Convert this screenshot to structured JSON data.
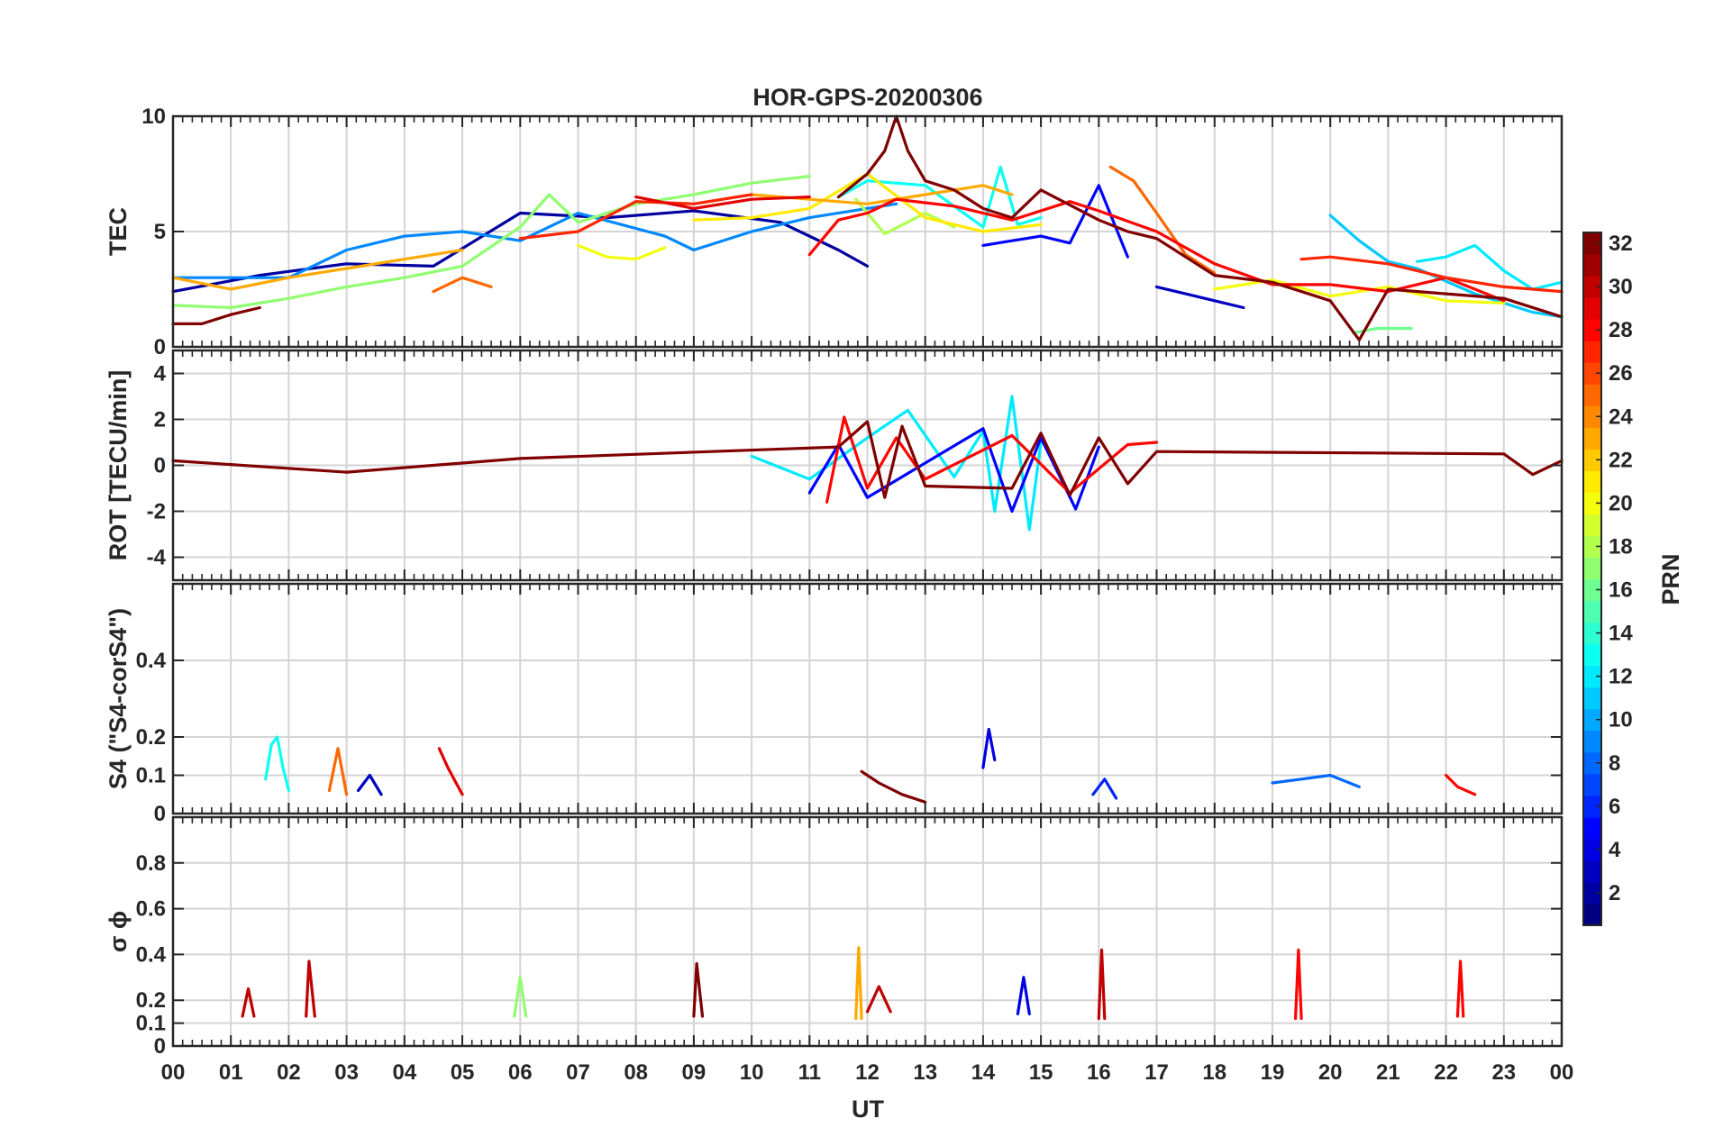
{
  "chart_data": {
    "type": "line",
    "title": "HOR-GPS-20200306",
    "xlabel": "UT",
    "x_unit": "hour",
    "xlim": [
      0,
      24
    ],
    "x_ticks": [
      "00",
      "01",
      "02",
      "03",
      "04",
      "05",
      "06",
      "07",
      "08",
      "09",
      "10",
      "11",
      "12",
      "13",
      "14",
      "15",
      "16",
      "17",
      "18",
      "19",
      "20",
      "21",
      "22",
      "23",
      "00"
    ],
    "grid": true,
    "colorbar": {
      "label": "PRN",
      "colormap": "jet",
      "range": [
        1,
        32
      ],
      "ticks": [
        "2",
        "4",
        "6",
        "8",
        "10",
        "12",
        "14",
        "16",
        "18",
        "20",
        "22",
        "24",
        "26",
        "28",
        "30",
        "32"
      ]
    },
    "panels": [
      {
        "id": "tec",
        "ylabel": "TEC",
        "ylim": [
          0,
          10
        ],
        "y_ticks": [
          {
            "v": 0,
            "t": "0"
          },
          {
            "v": 5,
            "t": "5"
          },
          {
            "v": 10,
            "t": "10"
          }
        ],
        "series": [
          {
            "prn": 2,
            "x": [
              0.0,
              1.5,
              3.0,
              4.5,
              6.0,
              7.5,
              9.0,
              10.5,
              11.5,
              12.0
            ],
            "y": [
              2.4,
              3.1,
              3.6,
              3.5,
              5.8,
              5.6,
              5.9,
              5.4,
              4.2,
              3.5
            ]
          },
          {
            "prn": 5,
            "x": [
              14.0,
              14.5,
              15.0,
              15.5,
              16.0,
              16.5
            ],
            "y": [
              4.4,
              4.6,
              4.8,
              4.5,
              7.0,
              3.9
            ]
          },
          {
            "prn": 3,
            "x": [
              17.0,
              17.5,
              18.0,
              18.5
            ],
            "y": [
              2.6,
              2.3,
              2.0,
              1.7
            ]
          },
          {
            "prn": 9,
            "x": [
              0.0,
              2.0,
              3.0,
              4.0,
              5.0,
              6.0,
              7.0,
              8.5,
              9.0,
              10.0,
              11.0,
              12.5
            ],
            "y": [
              3.0,
              3.0,
              4.2,
              4.8,
              5.0,
              4.6,
              5.8,
              4.8,
              4.2,
              5.0,
              5.6,
              6.2
            ]
          },
          {
            "prn": 11,
            "x": [
              20.0,
              20.5,
              21.0,
              21.5,
              22.5,
              23.5,
              24.0
            ],
            "y": [
              5.7,
              4.6,
              3.7,
              3.4,
              2.3,
              1.5,
              1.3
            ]
          },
          {
            "prn": 13,
            "x": [
              11.5,
              12.0,
              13.0,
              14.0,
              14.3,
              14.6,
              15.0
            ],
            "y": [
              6.5,
              7.2,
              7.0,
              5.2,
              7.8,
              5.3,
              5.6
            ]
          },
          {
            "prn": 12,
            "x": [
              21.5,
              22.0,
              22.5,
              23.0,
              23.5,
              24.0
            ],
            "y": [
              3.7,
              3.9,
              4.4,
              3.3,
              2.5,
              2.8
            ]
          },
          {
            "prn": 17,
            "x": [
              0.0,
              1.0,
              2.0,
              3.0,
              4.0,
              5.0,
              6.0,
              6.5,
              7.0,
              8.0,
              9.0,
              10.0,
              11.0
            ],
            "y": [
              1.8,
              1.7,
              2.1,
              2.6,
              3.0,
              3.5,
              5.2,
              6.6,
              5.4,
              6.2,
              6.6,
              7.1,
              7.4
            ]
          },
          {
            "prn": 18,
            "x": [
              11.8,
              12.3,
              13.0,
              13.5
            ],
            "y": [
              6.4,
              4.9,
              5.8,
              5.2
            ]
          },
          {
            "prn": 16,
            "x": [
              20.4,
              20.8,
              21.4
            ],
            "y": [
              0.6,
              0.8,
              0.8
            ]
          },
          {
            "prn": 20,
            "x": [
              7.0,
              7.5,
              8.0,
              8.5
            ],
            "y": [
              4.4,
              3.9,
              3.8,
              4.3
            ]
          },
          {
            "prn": 21,
            "x": [
              9.0,
              10.0,
              11.0,
              12.0,
              13.0,
              14.0,
              15.0
            ],
            "y": [
              5.5,
              5.6,
              6.0,
              7.5,
              5.6,
              5.0,
              5.3
            ]
          },
          {
            "prn": 20,
            "x": [
              18.0,
              19.0,
              20.0,
              21.0,
              22.0,
              23.0
            ],
            "y": [
              2.5,
              2.9,
              2.2,
              2.6,
              2.0,
              1.9
            ]
          },
          {
            "prn": 23,
            "x": [
              0.0,
              1.0,
              2.0,
              3.0,
              4.0,
              5.0
            ],
            "y": [
              3.0,
              2.5,
              3.0,
              3.4,
              3.8,
              4.2
            ]
          },
          {
            "prn": 23,
            "x": [
              10.0,
              11.0,
              12.0,
              13.0,
              14.0,
              14.5
            ],
            "y": [
              6.6,
              6.4,
              6.2,
              6.6,
              7.0,
              6.6
            ]
          },
          {
            "prn": 25,
            "x": [
              16.2,
              16.6,
              17.0,
              17.5,
              18.0
            ],
            "y": [
              7.8,
              7.2,
              5.8,
              4.0,
              3.2
            ]
          },
          {
            "prn": 25,
            "x": [
              4.5,
              5.0,
              5.5
            ],
            "y": [
              2.4,
              3.0,
              2.6
            ]
          },
          {
            "prn": 28,
            "x": [
              11.0,
              11.5,
              12.0,
              12.5,
              13.5,
              14.5,
              15.5,
              16.0,
              17.0,
              18.0,
              19.0,
              20.0,
              21.0,
              22.0,
              23.0
            ],
            "y": [
              4.0,
              5.5,
              5.8,
              6.4,
              6.1,
              5.5,
              6.3,
              5.9,
              5.0,
              3.6,
              2.7,
              2.7,
              2.4,
              3.0,
              2.0
            ]
          },
          {
            "prn": 27,
            "x": [
              6.0,
              7.0,
              8.0,
              9.0,
              10.0
            ],
            "y": [
              4.7,
              5.0,
              6.3,
              6.2,
              6.6
            ]
          },
          {
            "prn": 27,
            "x": [
              19.5,
              20.0,
              21.0,
              22.0,
              23.0,
              24.0
            ],
            "y": [
              3.8,
              3.9,
              3.6,
              3.0,
              2.6,
              2.4
            ]
          },
          {
            "prn": 29,
            "x": [
              8.0,
              9.0,
              10.0,
              11.0
            ],
            "y": [
              6.5,
              6.0,
              6.4,
              6.5
            ]
          },
          {
            "prn": 32,
            "x": [
              0.0,
              0.5,
              1.0,
              1.5
            ],
            "y": [
              1.0,
              1.0,
              1.4,
              1.7
            ]
          },
          {
            "prn": 32,
            "x": [
              11.5,
              12.0,
              12.3,
              12.5,
              12.7,
              13.0,
              13.5,
              14.0,
              14.5,
              15.0,
              16.0,
              16.5,
              17.0,
              18.0,
              19.0,
              20.0,
              20.5,
              21.0,
              22.0,
              23.0,
              24.0
            ],
            "y": [
              6.5,
              7.5,
              8.5,
              10.0,
              8.5,
              7.2,
              6.8,
              6.0,
              5.6,
              6.8,
              5.5,
              5.0,
              4.7,
              3.1,
              2.8,
              2.0,
              0.3,
              2.5,
              2.3,
              2.1,
              1.3
            ]
          }
        ]
      },
      {
        "id": "rot",
        "ylabel": "ROT [TECU/min]",
        "ylim": [
          -5,
          5
        ],
        "y_ticks": [
          {
            "v": -4,
            "t": "-4"
          },
          {
            "v": -2,
            "t": "-2"
          },
          {
            "v": 0,
            "t": "0"
          },
          {
            "v": 2,
            "t": "2"
          },
          {
            "v": 4,
            "t": "4"
          }
        ],
        "series": [
          {
            "prn": 12,
            "x": [
              10.0,
              11.0,
              12.0,
              12.7,
              13.5,
              14.0,
              14.2,
              14.5,
              14.8,
              15.0
            ],
            "y": [
              0.4,
              -0.6,
              1.2,
              2.4,
              -0.5,
              1.5,
              -2.0,
              3.0,
              -2.8,
              1.0
            ]
          },
          {
            "prn": 5,
            "x": [
              11.0,
              11.5,
              12.0,
              14.0,
              14.5,
              15.0,
              15.6,
              16.0
            ],
            "y": [
              -1.2,
              0.9,
              -1.4,
              1.6,
              -2.0,
              1.2,
              -1.9,
              0.8
            ]
          },
          {
            "prn": 28,
            "x": [
              11.3,
              11.6,
              12.0,
              12.5,
              13.0,
              14.5,
              15.5,
              16.5,
              17.0
            ],
            "y": [
              -1.6,
              2.1,
              -1.0,
              1.2,
              -0.6,
              1.3,
              -1.2,
              0.9,
              1.0
            ]
          },
          {
            "prn": 32,
            "x": [
              0.0,
              3.0,
              6.0,
              11.5,
              12.0,
              12.3,
              12.6,
              13.0,
              14.5,
              15.0,
              15.5,
              16.0,
              16.5,
              17.0,
              23.0,
              23.5,
              24.0
            ],
            "y": [
              0.2,
              -0.3,
              0.3,
              0.8,
              1.9,
              -1.4,
              1.7,
              -0.9,
              -1.0,
              1.4,
              -1.3,
              1.2,
              -0.8,
              0.6,
              0.5,
              -0.4,
              0.2
            ]
          }
        ]
      },
      {
        "id": "s4",
        "ylabel": "S4 (\"S4-corS4\")",
        "ylim": [
          0,
          0.6
        ],
        "y_ticks": [
          {
            "v": 0,
            "t": "0"
          },
          {
            "v": 0.1,
            "t": "0.1"
          },
          {
            "v": 0.2,
            "t": "0.2"
          },
          {
            "v": 0.4,
            "t": "0.4"
          }
        ],
        "series": [
          {
            "prn": 13,
            "x": [
              1.6,
              1.7,
              1.8,
              1.9,
              2.0
            ],
            "y": [
              0.09,
              0.18,
              0.2,
              0.12,
              0.06
            ]
          },
          {
            "prn": 25,
            "x": [
              2.7,
              2.85,
              3.0
            ],
            "y": [
              0.06,
              0.17,
              0.05
            ]
          },
          {
            "prn": 3,
            "x": [
              3.2,
              3.4,
              3.6
            ],
            "y": [
              0.06,
              0.1,
              0.05
            ]
          },
          {
            "prn": 29,
            "x": [
              4.6,
              4.75,
              5.0
            ],
            "y": [
              0.17,
              0.12,
              0.05
            ]
          },
          {
            "prn": 32,
            "x": [
              11.9,
              12.2,
              12.6,
              13.0
            ],
            "y": [
              0.11,
              0.08,
              0.05,
              0.03
            ]
          },
          {
            "prn": 4,
            "x": [
              14.0,
              14.1,
              14.2
            ],
            "y": [
              0.12,
              0.22,
              0.14
            ]
          },
          {
            "prn": 6,
            "x": [
              15.9,
              16.1,
              16.3
            ],
            "y": [
              0.05,
              0.09,
              0.04
            ]
          },
          {
            "prn": 8,
            "x": [
              19.0,
              19.5,
              20.0,
              20.5
            ],
            "y": [
              0.08,
              0.09,
              0.1,
              0.07
            ]
          },
          {
            "prn": 28,
            "x": [
              22.0,
              22.2,
              22.5
            ],
            "y": [
              0.1,
              0.07,
              0.05
            ]
          }
        ]
      },
      {
        "id": "sigma_phi",
        "ylabel": "σ ϕ",
        "ylim": [
          0,
          1
        ],
        "y_ticks": [
          {
            "v": 0,
            "t": "0"
          },
          {
            "v": 0.1,
            "t": "0.1"
          },
          {
            "v": 0.2,
            "t": "0.2"
          },
          {
            "v": 0.4,
            "t": "0.4"
          },
          {
            "v": 0.6,
            "t": "0.6"
          },
          {
            "v": 0.8,
            "t": "0.8"
          }
        ],
        "series": [
          {
            "prn": 30,
            "x": [
              2.3,
              2.35,
              2.45
            ],
            "y": [
              0.13,
              0.37,
              0.13
            ]
          },
          {
            "prn": 32,
            "x": [
              9.0,
              9.05,
              9.15
            ],
            "y": [
              0.13,
              0.36,
              0.13
            ]
          },
          {
            "prn": 23,
            "x": [
              11.8,
              11.85,
              11.9
            ],
            "y": [
              0.12,
              0.43,
              0.12
            ]
          },
          {
            "prn": 30,
            "x": [
              16.0,
              16.05,
              16.1
            ],
            "y": [
              0.12,
              0.42,
              0.12
            ]
          },
          {
            "prn": 28,
            "x": [
              19.4,
              19.45,
              19.5
            ],
            "y": [
              0.12,
              0.42,
              0.12
            ]
          },
          {
            "prn": 28,
            "x": [
              22.2,
              22.25,
              22.3
            ],
            "y": [
              0.13,
              0.37,
              0.13
            ]
          },
          {
            "prn": 17,
            "x": [
              5.9,
              6.0,
              6.1
            ],
            "y": [
              0.13,
              0.3,
              0.13
            ]
          },
          {
            "prn": 4,
            "x": [
              14.6,
              14.7,
              14.8
            ],
            "y": [
              0.14,
              0.3,
              0.14
            ]
          },
          {
            "prn": 30,
            "x": [
              12.0,
              12.2,
              12.4
            ],
            "y": [
              0.15,
              0.26,
              0.15
            ]
          },
          {
            "prn": 30,
            "x": [
              1.2,
              1.3,
              1.4
            ],
            "y": [
              0.13,
              0.25,
              0.13
            ]
          }
        ]
      }
    ]
  }
}
